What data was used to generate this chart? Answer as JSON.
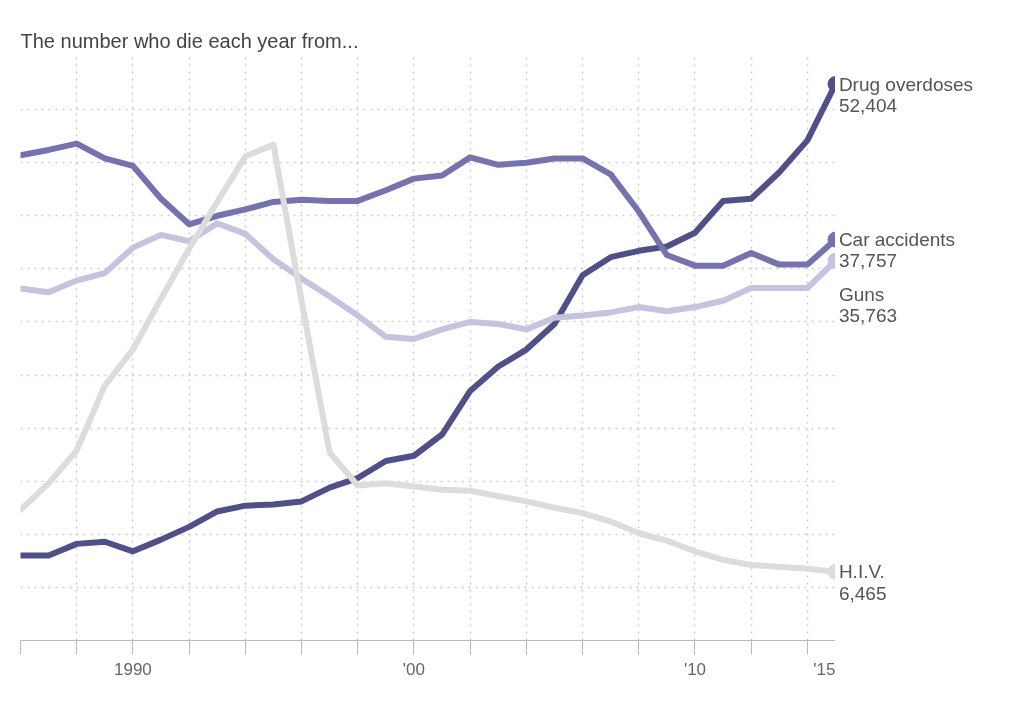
{
  "chart_data": {
    "type": "line",
    "title": "The number who die each year from...",
    "x": [
      1986,
      1987,
      1988,
      1989,
      1990,
      1991,
      1992,
      1993,
      1994,
      1995,
      1996,
      1997,
      1998,
      1999,
      2000,
      2001,
      2002,
      2003,
      2004,
      2005,
      2006,
      2007,
      2008,
      2009,
      2010,
      2011,
      2012,
      2013,
      2014,
      2015
    ],
    "series": [
      {
        "name": "Drug overdoses",
        "color": "#4f5087",
        "values": [
          8000,
          8000,
          9100,
          9300,
          8400,
          9500,
          10700,
          12150,
          12700,
          12800,
          13100,
          14400,
          15300,
          16900,
          17400,
          19400,
          23500,
          25800,
          27400,
          29800,
          34400,
          36100,
          36700,
          37100,
          38400,
          41400,
          41600,
          44100,
          47100,
          52404
        ],
        "value_labels": [
          null,
          null,
          null,
          null,
          null,
          null,
          null,
          null,
          null,
          null,
          null,
          null,
          null,
          null,
          null,
          null,
          null,
          null,
          null,
          null,
          null,
          null,
          null,
          null,
          null,
          null,
          null,
          null,
          null,
          "52,404"
        ]
      },
      {
        "name": "Car accidents",
        "color": "#7473ad",
        "values": [
          45700,
          46200,
          46800,
          45400,
          44700,
          41600,
          39200,
          40000,
          40600,
          41300,
          41500,
          41400,
          41400,
          42400,
          43500,
          43800,
          45500,
          44800,
          45000,
          45400,
          45400,
          43900,
          40400,
          36300,
          35300,
          35300,
          36500,
          35400,
          35400,
          37757
        ],
        "value_labels": [
          null,
          null,
          null,
          null,
          null,
          null,
          null,
          null,
          null,
          null,
          null,
          null,
          null,
          null,
          null,
          null,
          null,
          null,
          null,
          null,
          null,
          null,
          null,
          null,
          null,
          null,
          null,
          null,
          null,
          "37,757"
        ]
      },
      {
        "name": "Guns",
        "color": "#c4c4de",
        "values": [
          33150,
          32800,
          33900,
          34600,
          37000,
          38200,
          37600,
          39300,
          38300,
          35900,
          34100,
          32400,
          30600,
          28600,
          28400,
          29300,
          30000,
          29800,
          29300,
          30400,
          30600,
          30900,
          31400,
          31000,
          31400,
          32000,
          33200,
          33200,
          33200,
          35763
        ],
        "value_labels": [
          null,
          null,
          null,
          null,
          null,
          null,
          null,
          null,
          null,
          null,
          null,
          null,
          null,
          null,
          null,
          null,
          null,
          null,
          null,
          null,
          null,
          null,
          null,
          null,
          null,
          null,
          null,
          null,
          null,
          "35,763"
        ]
      },
      {
        "name": "H.I.V.",
        "color": "#dcdcdc",
        "values": [
          12300,
          14800,
          17900,
          24000,
          27400,
          32200,
          36900,
          41300,
          45600,
          46700,
          32000,
          17700,
          14600,
          14800,
          14500,
          14200,
          14100,
          13600,
          13100,
          12500,
          12000,
          11200,
          10100,
          9400,
          8400,
          7600,
          7100,
          6950,
          6750,
          6465
        ],
        "value_labels": [
          null,
          null,
          null,
          null,
          null,
          null,
          null,
          null,
          null,
          null,
          null,
          null,
          null,
          null,
          null,
          null,
          null,
          null,
          null,
          null,
          null,
          null,
          null,
          null,
          null,
          null,
          null,
          null,
          null,
          "6,465"
        ]
      }
    ],
    "xlim": [
      1986,
      2015
    ],
    "xticks": [
      {
        "value": 1986,
        "label": null
      },
      {
        "value": 1988,
        "label": null
      },
      {
        "value": 1990,
        "label": "1990"
      },
      {
        "value": 1992,
        "label": null
      },
      {
        "value": 1994,
        "label": null
      },
      {
        "value": 1996,
        "label": null
      },
      {
        "value": 1998,
        "label": null
      },
      {
        "value": 2000,
        "label": "'00"
      },
      {
        "value": 2002,
        "label": null
      },
      {
        "value": 2004,
        "label": null
      },
      {
        "value": 2006,
        "label": null
      },
      {
        "value": 2008,
        "label": null
      },
      {
        "value": 2010,
        "label": "'10"
      },
      {
        "value": 2012,
        "label": null
      },
      {
        "value": 2014,
        "label": null
      },
      {
        "value": 2015,
        "label": "'15"
      }
    ],
    "ylim": [
      0,
      55000
    ],
    "yticks": [
      {
        "value": 0,
        "label": null
      },
      {
        "value": 5000,
        "label": null
      },
      {
        "value": 10000,
        "label": null
      },
      {
        "value": 15000,
        "label": null
      },
      {
        "value": 20000,
        "label": null
      },
      {
        "value": 25000,
        "label": null
      },
      {
        "value": 30000,
        "label": null
      },
      {
        "value": 35000,
        "label": null
      },
      {
        "value": 40000,
        "label": null
      },
      {
        "value": 45000,
        "label": null
      },
      {
        "value": 50000,
        "label": null
      }
    ],
    "grid": true,
    "tick_labels": "x",
    "line_style": "solid",
    "marker": "none"
  }
}
